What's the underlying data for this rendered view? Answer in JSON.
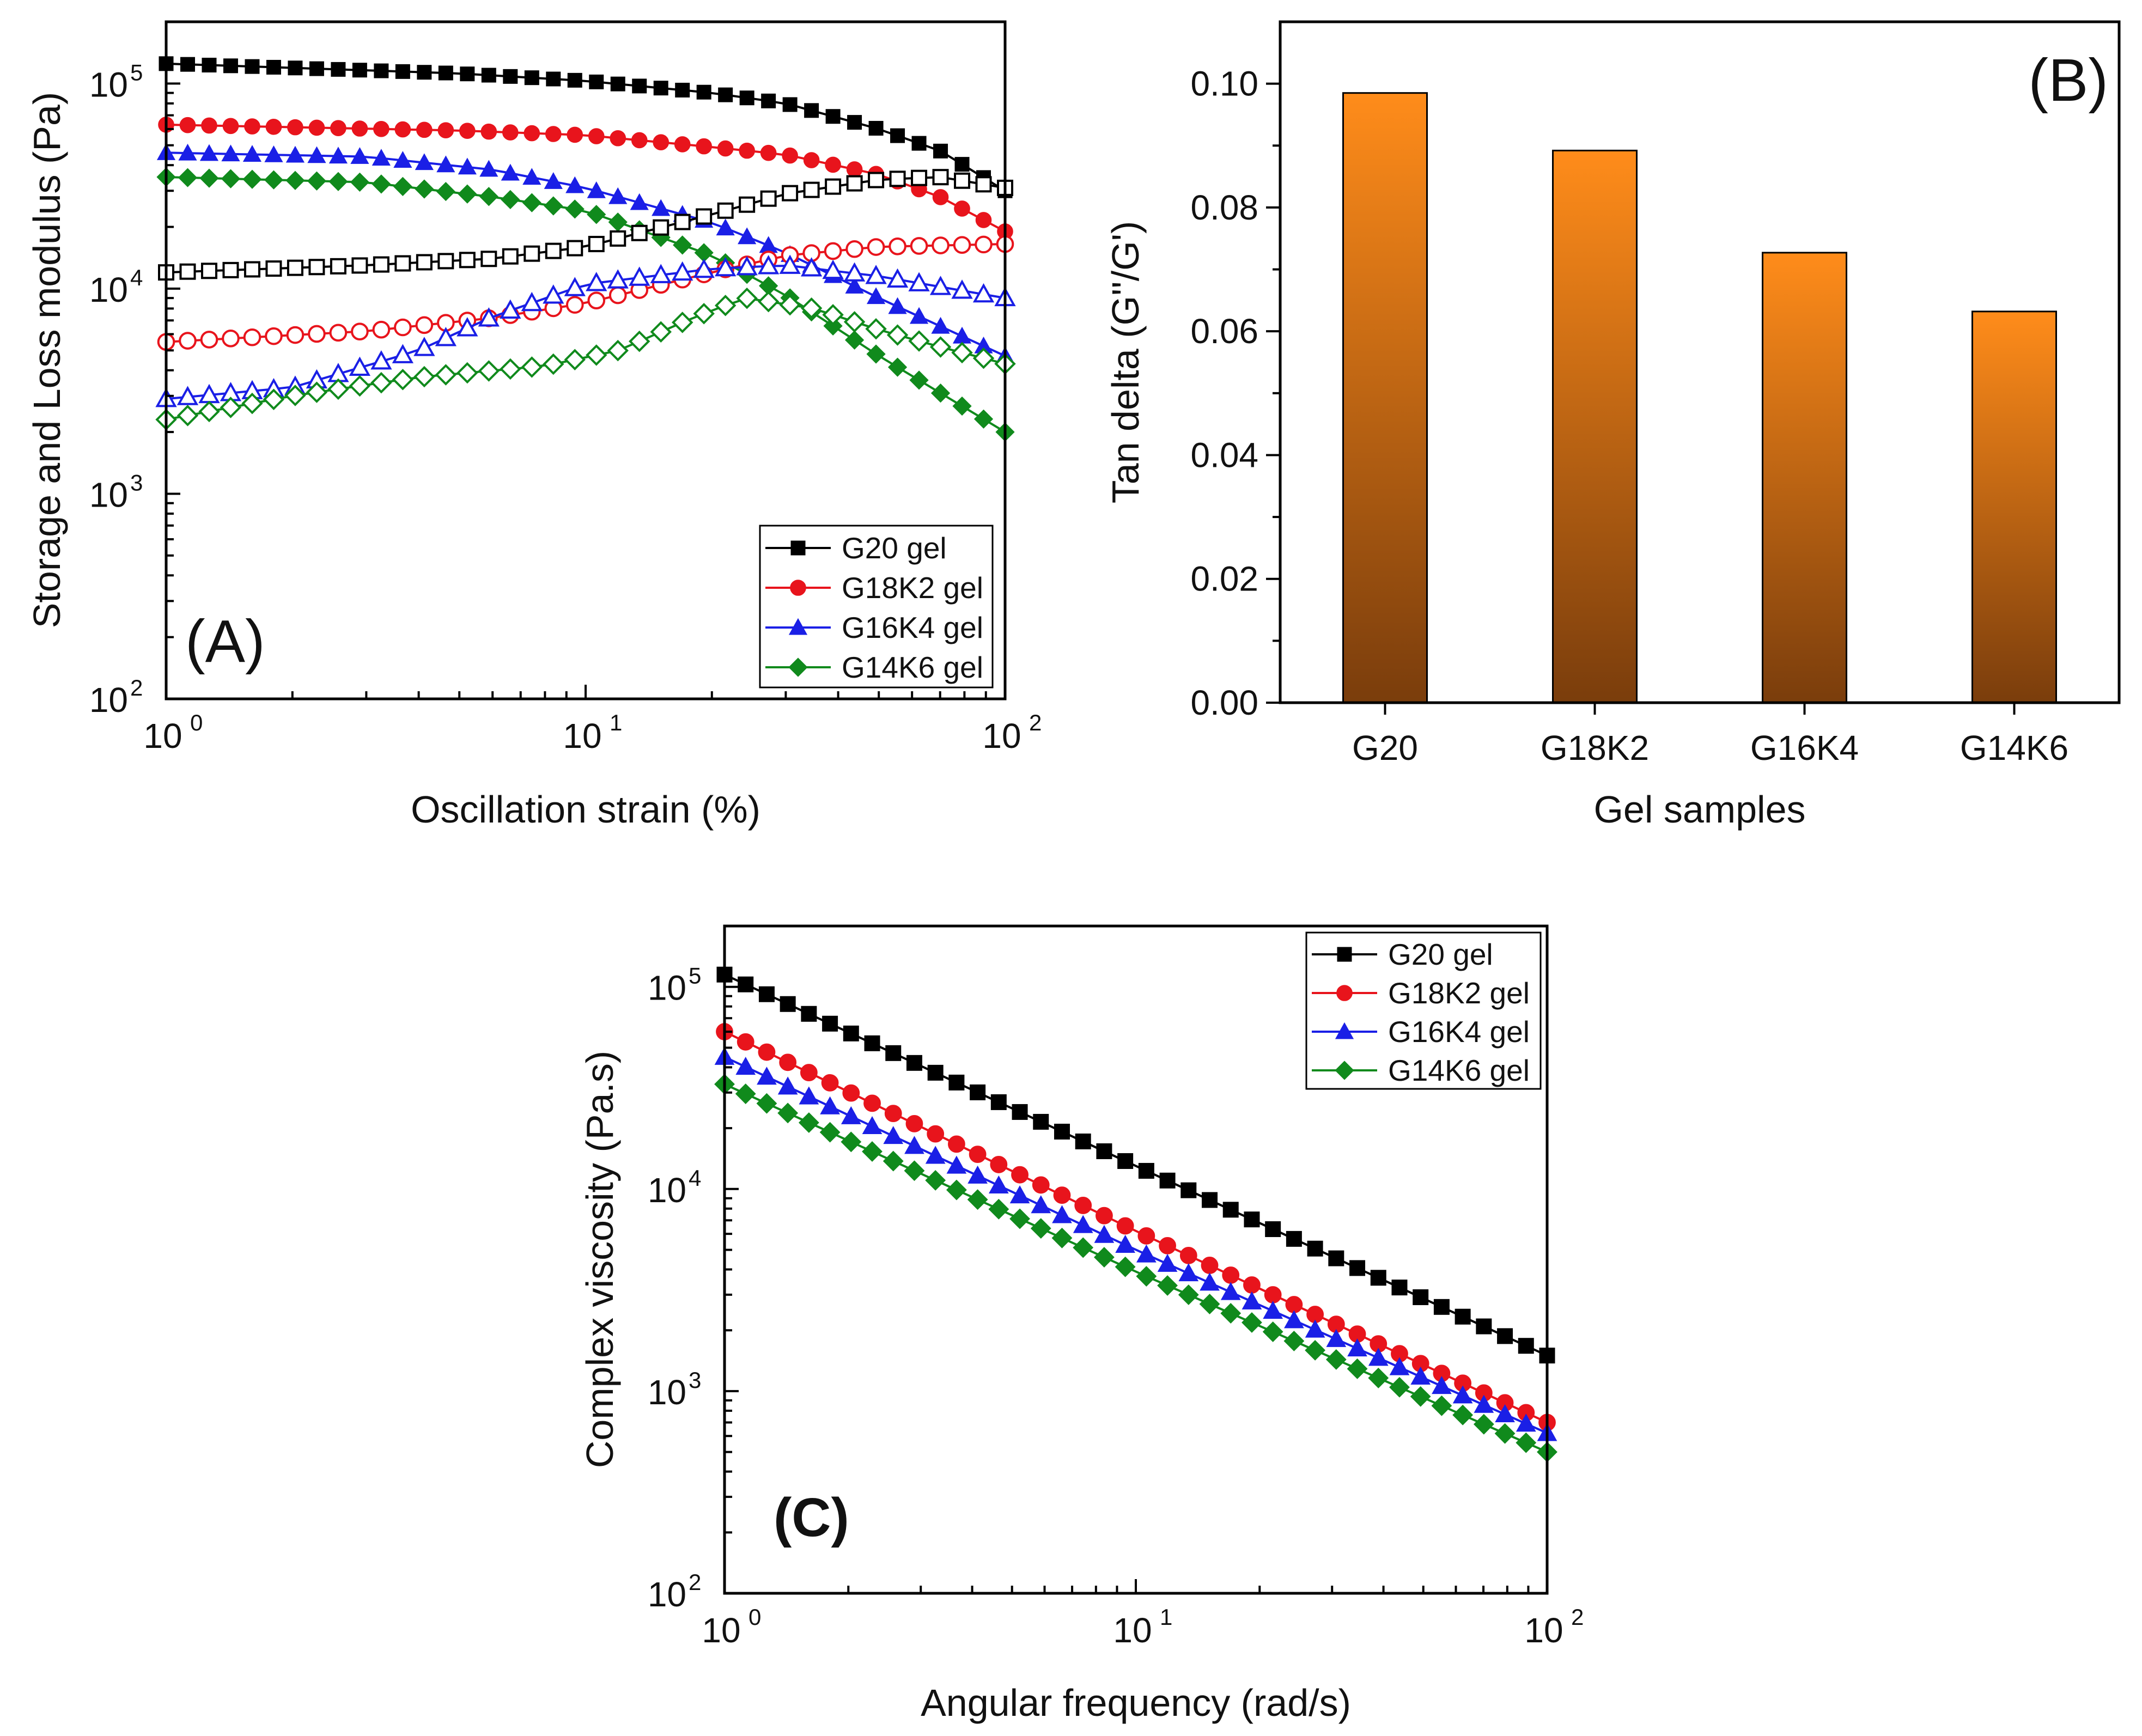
{
  "colors": {
    "g20": "#000000",
    "g18k2": "#e8141c",
    "g16k4": "#1a1fe6",
    "g14k6": "#108a1c",
    "bar_top": "#ff8c1a",
    "bar_bottom": "#7a3d0c"
  },
  "chart_data": [
    {
      "id": "A",
      "type": "scatter",
      "panel_label": "(A)",
      "xlabel": "Oscillation strain (%)",
      "ylabel": "Storage and Loss modulus (Pa)",
      "xscale": "log",
      "yscale": "log",
      "xlim": [
        1,
        100
      ],
      "ylim": [
        100,
        200000
      ],
      "xticks": [
        {
          "base": "10",
          "exp": "0"
        },
        {
          "base": "10",
          "exp": "1"
        },
        {
          "base": "10",
          "exp": "2"
        }
      ],
      "yticks": [
        {
          "base": "10",
          "exp": "2"
        },
        {
          "base": "10",
          "exp": "3"
        },
        {
          "base": "10",
          "exp": "4"
        },
        {
          "base": "10",
          "exp": "5"
        }
      ],
      "legend_position": "bottom-right",
      "legend": [
        "G20 gel",
        "G18K2 gel",
        "G16K4 gel",
        "G14K6 gel"
      ],
      "series": [
        {
          "name": "G20 gel",
          "kind": "storage",
          "color_key": "g20",
          "marker": "square",
          "filled": true,
          "x_anchor": [
            1,
            5,
            10,
            20,
            30,
            50,
            70,
            100
          ],
          "y_anchor": [
            125000,
            112000,
            103000,
            90000,
            80000,
            60000,
            47000,
            30000
          ]
        },
        {
          "name": "G18K2 gel",
          "kind": "storage",
          "color_key": "g18k2",
          "marker": "circle",
          "filled": true,
          "x_anchor": [
            1,
            5,
            10,
            20,
            30,
            50,
            70,
            100
          ],
          "y_anchor": [
            63000,
            59000,
            56000,
            49000,
            45000,
            36000,
            28000,
            19000
          ]
        },
        {
          "name": "G16K4 gel",
          "kind": "storage",
          "color_key": "g16k4",
          "marker": "triangle",
          "filled": true,
          "x_anchor": [
            1,
            3,
            6,
            10,
            20,
            30,
            50,
            100
          ],
          "y_anchor": [
            46000,
            44000,
            38000,
            31000,
            21000,
            15000,
            9000,
            4700
          ]
        },
        {
          "name": "G14K6 gel",
          "kind": "storage",
          "color_key": "g14k6",
          "marker": "diamond",
          "filled": true,
          "x_anchor": [
            1,
            3,
            6,
            10,
            20,
            30,
            50,
            100
          ],
          "y_anchor": [
            35000,
            33000,
            28000,
            24000,
            14500,
            9300,
            4700,
            2000
          ]
        },
        {
          "name": "G20 gel",
          "kind": "loss",
          "color_key": "g20",
          "marker": "square",
          "filled": false,
          "x_anchor": [
            1,
            3,
            6,
            10,
            20,
            30,
            50,
            70,
            100
          ],
          "y_anchor": [
            12000,
            13000,
            14000,
            16000,
            23000,
            29000,
            34000,
            35000,
            31000
          ]
        },
        {
          "name": "G18K2 gel",
          "kind": "loss",
          "color_key": "g18k2",
          "marker": "circle",
          "filled": false,
          "x_anchor": [
            1,
            3,
            6,
            10,
            20,
            30,
            50,
            100
          ],
          "y_anchor": [
            5500,
            6200,
            7200,
            8500,
            12000,
            14500,
            16000,
            16500
          ]
        },
        {
          "name": "G16K4 gel",
          "kind": "loss",
          "color_key": "g16k4",
          "marker": "triangle",
          "filled": false,
          "x_anchor": [
            1,
            2,
            4,
            6,
            10,
            20,
            30,
            50,
            100
          ],
          "y_anchor": [
            2900,
            3300,
            5000,
            7300,
            10500,
            12500,
            13000,
            11500,
            9000
          ]
        },
        {
          "name": "G14K6 gel",
          "kind": "loss",
          "color_key": "g14k6",
          "marker": "diamond",
          "filled": false,
          "x_anchor": [
            1,
            2,
            4,
            8,
            12,
            18,
            24,
            35,
            50,
            70,
            100
          ],
          "y_anchor": [
            2300,
            3000,
            3700,
            4200,
            5000,
            7200,
            9000,
            8000,
            6300,
            5200,
            4300
          ]
        }
      ]
    },
    {
      "id": "B",
      "type": "bar",
      "panel_label": "(B)",
      "xlabel": "Gel samples",
      "ylabel": "Tan delta (G''/G')",
      "categories": [
        "G20",
        "G18K2",
        "G16K4",
        "G14K6"
      ],
      "values": [
        0.0985,
        0.0892,
        0.0727,
        0.0632
      ],
      "ylim": [
        0,
        0.11
      ],
      "yticks": [
        "0.00",
        "0.02",
        "0.04",
        "0.06",
        "0.08",
        "0.10"
      ]
    },
    {
      "id": "C",
      "type": "scatter",
      "panel_label": "(C)",
      "xlabel": "Angular frequency (rad/s)",
      "ylabel": "Complex viscosity (Pa.s)",
      "xscale": "log",
      "yscale": "log",
      "xlim": [
        1,
        100
      ],
      "ylim": [
        100,
        200000
      ],
      "xticks": [
        {
          "base": "10",
          "exp": "0"
        },
        {
          "base": "10",
          "exp": "1"
        },
        {
          "base": "10",
          "exp": "2"
        }
      ],
      "yticks": [
        {
          "base": "10",
          "exp": "2"
        },
        {
          "base": "10",
          "exp": "3"
        },
        {
          "base": "10",
          "exp": "4"
        },
        {
          "base": "10",
          "exp": "5"
        }
      ],
      "legend_position": "top-right",
      "legend": [
        "G20 gel",
        "G18K2 gel",
        "G16K4 gel",
        "G14K6 gel"
      ],
      "series": [
        {
          "name": "G20 gel",
          "color_key": "g20",
          "marker": "square",
          "filled": true,
          "x_anchor": [
            1,
            10,
            100
          ],
          "y_anchor": [
            115000,
            13000,
            1500
          ]
        },
        {
          "name": "G18K2 gel",
          "color_key": "g18k2",
          "marker": "circle",
          "filled": true,
          "x_anchor": [
            1,
            10,
            100
          ],
          "y_anchor": [
            60000,
            6200,
            700
          ]
        },
        {
          "name": "G16K4 gel",
          "color_key": "g16k4",
          "marker": "triangle",
          "filled": true,
          "x_anchor": [
            1,
            10,
            100
          ],
          "y_anchor": [
            45000,
            5000,
            620
          ]
        },
        {
          "name": "G14K6 gel",
          "color_key": "g14k6",
          "marker": "diamond",
          "filled": true,
          "x_anchor": [
            1,
            10,
            100
          ],
          "y_anchor": [
            33000,
            3900,
            500
          ]
        }
      ]
    }
  ]
}
